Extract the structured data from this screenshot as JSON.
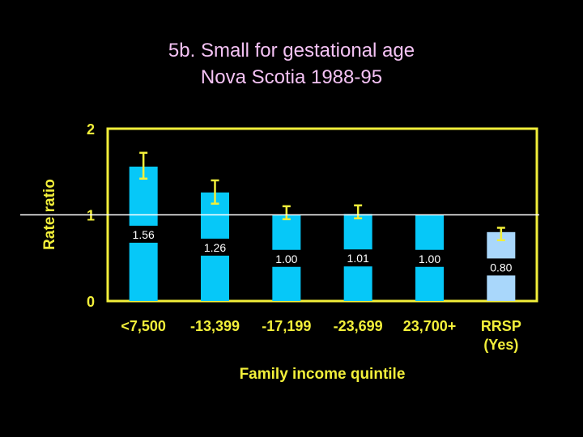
{
  "title_line1": "5b. Small for gestational age",
  "title_line2": "Nova Scotia 1988-95",
  "colors": {
    "background": "#000000",
    "title": "#f4c2f4",
    "axis_text": "#f2ef3a",
    "frame": "#f2ef3a",
    "bar": "#06c8f8",
    "bar_rrsp": "#a9d7fb",
    "reference_line": "#ffffff",
    "value_box": "#000000",
    "value_text": "#ffffff"
  },
  "chart_data": {
    "type": "bar",
    "ylabel": "Rate ratio",
    "xlabel": "Family income quintile",
    "ylim": [
      0,
      2
    ],
    "yticks": [
      "0",
      "1",
      "2"
    ],
    "reference_line": 1,
    "categories": [
      "<7,500",
      "-13,399",
      "-17,199",
      "-23,699",
      "23,700+",
      "RRSP (Yes)"
    ],
    "values": [
      1.56,
      1.26,
      1.0,
      1.01,
      1.0,
      0.8
    ],
    "value_labels": [
      "1.56",
      "1.26",
      "1.00",
      "1.01",
      "1.00",
      "0.80"
    ],
    "ci_lower": [
      1.42,
      1.13,
      null,
      null,
      null,
      null
    ],
    "ci_upper": [
      1.72,
      1.4,
      1.1,
      1.11,
      null,
      0.85
    ],
    "highlight_index": 5
  }
}
